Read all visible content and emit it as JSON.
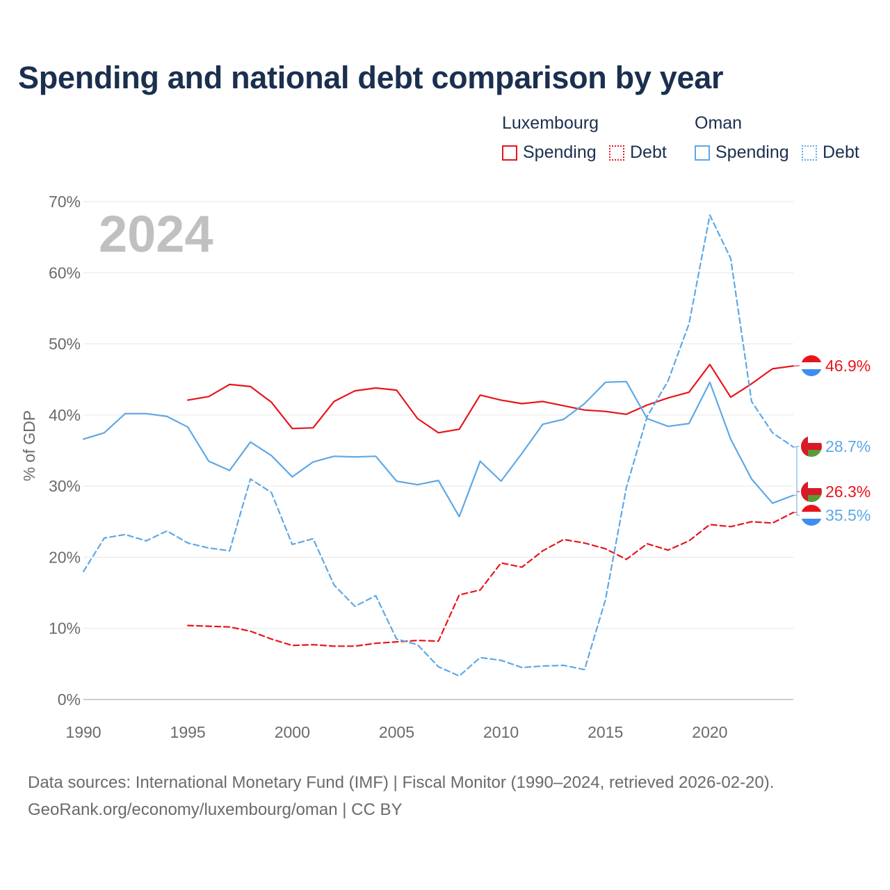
{
  "title": "Spending and national debt comparison by year",
  "legend": {
    "groups": [
      {
        "country": "Luxembourg",
        "items": [
          {
            "label": "Spending",
            "style": "solid",
            "color": "#e8141b"
          },
          {
            "label": "Debt",
            "style": "dotted",
            "color": "#e8141b"
          }
        ]
      },
      {
        "country": "Oman",
        "items": [
          {
            "label": "Spending",
            "style": "solid",
            "color": "#5ea8e6"
          },
          {
            "label": "Debt",
            "style": "dotted",
            "color": "#5ea8e6"
          }
        ]
      }
    ]
  },
  "source": {
    "line1": "Data sources: International Monetary Fund (IMF) | Fiscal Monitor (1990–2024, retrieved 2026-02-20).",
    "line2": "GeoRank.org/economy/luxembourg/oman | CC BY"
  },
  "chart_data": {
    "type": "line",
    "title": "Spending and national debt comparison by year",
    "year_watermark": "2024",
    "xlabel": "",
    "ylabel": "% of GDP",
    "xlim": [
      1990,
      2024
    ],
    "ylim": [
      0,
      70
    ],
    "xticks": [
      1990,
      1995,
      2000,
      2005,
      2010,
      2015,
      2020
    ],
    "yticks": [
      0,
      10,
      20,
      30,
      40,
      50,
      60,
      70
    ],
    "ytick_labels": [
      "0%",
      "10%",
      "20%",
      "30%",
      "40%",
      "50%",
      "60%",
      "70%"
    ],
    "grid": true,
    "series": [
      {
        "name": "Luxembourg Spending",
        "country": "Luxembourg",
        "color": "#e8141b",
        "dash": "solid",
        "flag": "luxembourg-flag-icon",
        "end_label": "46.9%",
        "end_value": 46.9,
        "x": [
          1995,
          1996,
          1997,
          1998,
          1999,
          2000,
          2001,
          2002,
          2003,
          2004,
          2005,
          2006,
          2007,
          2008,
          2009,
          2010,
          2011,
          2012,
          2013,
          2014,
          2015,
          2016,
          2017,
          2018,
          2019,
          2020,
          2021,
          2022,
          2023,
          2024
        ],
        "y": [
          42.1,
          42.6,
          44.3,
          44.0,
          41.8,
          38.1,
          38.2,
          41.9,
          43.4,
          43.8,
          43.5,
          39.5,
          37.5,
          38.0,
          42.8,
          42.1,
          41.6,
          41.9,
          41.3,
          40.7,
          40.5,
          40.1,
          41.4,
          42.4,
          43.2,
          47.1,
          42.5,
          44.4,
          46.5,
          46.9
        ]
      },
      {
        "name": "Oman Spending",
        "country": "Oman",
        "color": "#5ea8e6",
        "dash": "solid",
        "flag": "oman-flag-icon",
        "end_label": "28.7%",
        "end_value": 28.7,
        "x": [
          1990,
          1991,
          1992,
          1993,
          1994,
          1995,
          1996,
          1997,
          1998,
          1999,
          2000,
          2001,
          2002,
          2003,
          2004,
          2005,
          2006,
          2007,
          2008,
          2009,
          2010,
          2011,
          2012,
          2013,
          2014,
          2015,
          2016,
          2017,
          2018,
          2019,
          2020,
          2021,
          2022,
          2023,
          2024
        ],
        "y": [
          36.6,
          37.5,
          40.2,
          40.2,
          39.8,
          38.3,
          33.5,
          32.2,
          36.2,
          34.3,
          31.3,
          33.4,
          34.2,
          34.1,
          34.2,
          30.7,
          30.2,
          30.8,
          25.7,
          33.5,
          30.7,
          34.6,
          38.7,
          39.4,
          41.6,
          44.6,
          44.7,
          39.5,
          38.4,
          38.8,
          44.6,
          36.6,
          31.0,
          27.6,
          28.7
        ]
      },
      {
        "name": "Luxembourg Debt",
        "country": "Luxembourg",
        "color": "#e8141b",
        "dash": "dashed",
        "flag": "luxembourg-flag-icon",
        "end_label": "26.3%",
        "end_value": 26.3,
        "x": [
          1995,
          1996,
          1997,
          1998,
          1999,
          2000,
          2001,
          2002,
          2003,
          2004,
          2005,
          2006,
          2007,
          2008,
          2009,
          2010,
          2011,
          2012,
          2013,
          2014,
          2015,
          2016,
          2017,
          2018,
          2019,
          2020,
          2021,
          2022,
          2023,
          2024
        ],
        "y": [
          10.4,
          10.3,
          10.2,
          9.6,
          8.5,
          7.6,
          7.7,
          7.5,
          7.5,
          7.9,
          8.1,
          8.3,
          8.2,
          14.7,
          15.4,
          19.2,
          18.6,
          20.9,
          22.5,
          22.0,
          21.2,
          19.7,
          21.9,
          21.0,
          22.3,
          24.6,
          24.3,
          25.0,
          24.8,
          26.3
        ]
      },
      {
        "name": "Oman Debt",
        "country": "Oman",
        "color": "#5ea8e6",
        "dash": "dashed",
        "flag": "oman-flag-icon",
        "end_label": "35.5%",
        "end_value": 35.5,
        "x": [
          1990,
          1991,
          1992,
          1993,
          1994,
          1995,
          1996,
          1997,
          1998,
          1999,
          2000,
          2001,
          2002,
          2003,
          2004,
          2005,
          2006,
          2007,
          2008,
          2009,
          2010,
          2011,
          2012,
          2013,
          2014,
          2015,
          2016,
          2017,
          2018,
          2019,
          2020,
          2021,
          2022,
          2023,
          2024
        ],
        "y": [
          18.0,
          22.7,
          23.2,
          22.3,
          23.7,
          22.0,
          21.3,
          20.9,
          31.0,
          29.1,
          21.8,
          22.6,
          16.1,
          13.1,
          14.6,
          8.5,
          7.7,
          4.6,
          3.3,
          5.9,
          5.5,
          4.5,
          4.7,
          4.8,
          4.2,
          14.0,
          29.8,
          39.8,
          44.8,
          52.8,
          68.1,
          62.0,
          41.9,
          37.5,
          35.5
        ]
      }
    ]
  }
}
